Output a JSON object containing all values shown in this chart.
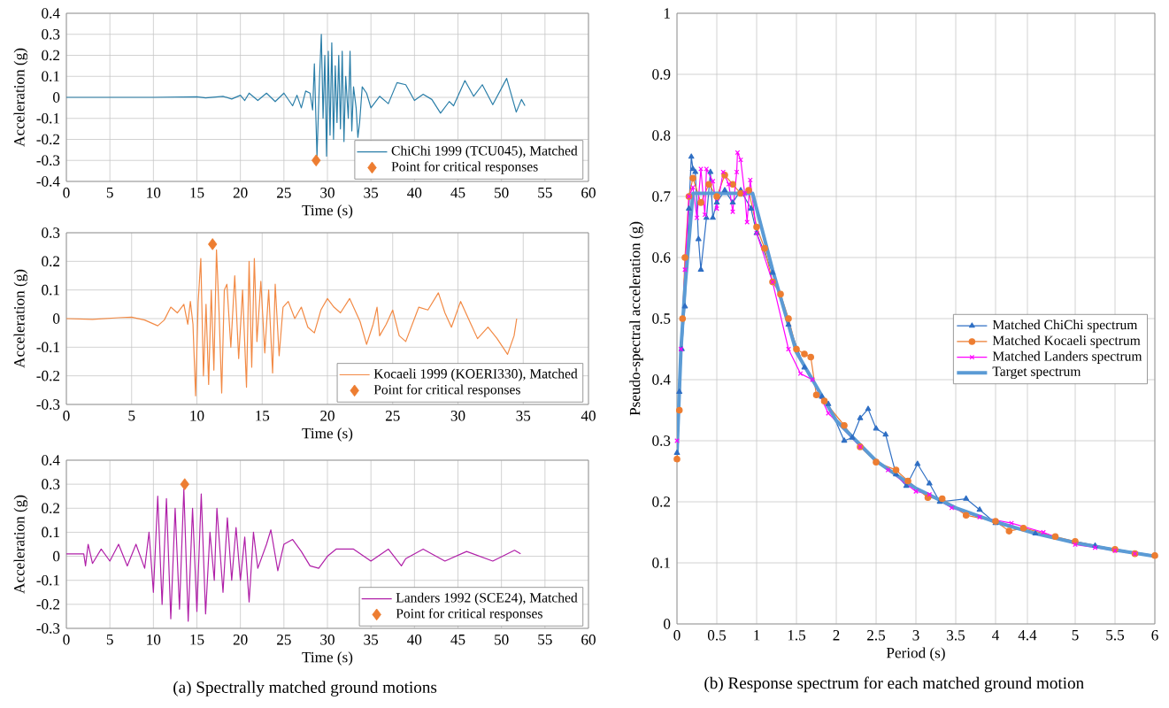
{
  "chart_data": [
    {
      "type": "line",
      "xlabel": "Time (s)",
      "ylabel": "Acceleration (g)",
      "xlim": [
        0,
        60
      ],
      "ylim": [
        -0.4,
        0.4
      ],
      "xticks": [
        0,
        5,
        10,
        15,
        20,
        25,
        30,
        35,
        40,
        45,
        50,
        55,
        60
      ],
      "yticks": [
        -0.4,
        -0.3,
        -0.2,
        -0.1,
        0,
        0.1,
        0.2,
        0.3,
        0.4
      ],
      "grid": true,
      "legend": "bottom right",
      "series": [
        {
          "name": "ChiChi 1999 (TCU045), Matched",
          "color": "#2a7ea8",
          "x": [
            0,
            5,
            10,
            15,
            16,
            18,
            19,
            20,
            20.5,
            21,
            22,
            23,
            24,
            25,
            26,
            26.5,
            27,
            27.5,
            28,
            28.3,
            28.5,
            28.8,
            29.1,
            29.3,
            29.5,
            29.7,
            29.9,
            30.1,
            30.3,
            30.5,
            30.7,
            30.9,
            31.1,
            31.3,
            31.5,
            31.7,
            31.9,
            32.1,
            32.4,
            32.6,
            32.8,
            33.0,
            33.3,
            33.5,
            33.7,
            34,
            34.5,
            35,
            36,
            37,
            38,
            39,
            40,
            41,
            42,
            43,
            44,
            44.5,
            45.8,
            46.8,
            47.8,
            49,
            50.6,
            51.7,
            52.3,
            52.7
          ],
          "values": [
            0,
            0,
            0,
            0.003,
            -0.003,
            0.005,
            -0.008,
            0.01,
            -0.015,
            0.02,
            -0.015,
            0.02,
            -0.02,
            0.02,
            -0.04,
            0.01,
            -0.05,
            0.03,
            0.02,
            -0.06,
            0.16,
            -0.28,
            0.1,
            0.3,
            -0.1,
            0.2,
            -0.28,
            0.22,
            -0.18,
            0.26,
            -0.2,
            0.15,
            -0.12,
            0.2,
            -0.15,
            0.22,
            -0.21,
            0.1,
            -0.1,
            0.22,
            -0.16,
            0.05,
            -0.05,
            -0.19,
            -0.12,
            0.05,
            0.02,
            -0.05,
            0.005,
            -0.03,
            0.07,
            0.06,
            -0.015,
            0.015,
            -0.01,
            -0.075,
            -0.02,
            -0.04,
            0.08,
            0.005,
            0.06,
            -0.035,
            0.09,
            -0.07,
            -0.01,
            -0.04
          ]
        },
        {
          "name": "Point for critical responses",
          "type": "scatter",
          "marker": "diamond",
          "color": "#ed7d31",
          "x": [
            28.7
          ],
          "values": [
            -0.3
          ]
        }
      ]
    },
    {
      "type": "line",
      "xlabel": "Time (s)",
      "ylabel": "Acceleration (g)",
      "xlim": [
        0,
        40
      ],
      "ylim": [
        -0.3,
        0.3
      ],
      "xticks": [
        0,
        5,
        10,
        15,
        20,
        25,
        30,
        35,
        40
      ],
      "yticks": [
        -0.3,
        -0.2,
        -0.1,
        0,
        0.1,
        0.2,
        0.3
      ],
      "grid": true,
      "legend": "bottom right",
      "series": [
        {
          "name": "Kocaeli 1999 (KOERI330), Matched",
          "color": "#f28a45",
          "x": [
            0,
            2,
            4,
            5,
            6,
            7,
            7.5,
            8,
            8.5,
            9,
            9.3,
            9.5,
            9.7,
            9.9,
            10.1,
            10.3,
            10.5,
            10.7,
            10.9,
            11.1,
            11.3,
            11.5,
            11.7,
            11.9,
            12.1,
            12.3,
            12.6,
            12.9,
            13.2,
            13.5,
            13.8,
            14.0,
            14.2,
            14.4,
            14.6,
            14.9,
            15.2,
            15.5,
            15.8,
            16.0,
            16.3,
            16.6,
            17,
            17.5,
            18,
            18.5,
            19,
            19.5,
            20,
            20.5,
            21,
            21.7,
            22.5,
            23,
            23.5,
            23.8,
            24,
            24.5,
            25,
            25.5,
            26,
            27,
            27.7,
            28.5,
            29,
            29.5,
            30.2,
            31,
            31.5,
            32.3,
            33,
            33.8,
            34.3,
            34.5
          ],
          "values": [
            0,
            -0.003,
            0.003,
            0.005,
            -0.005,
            -0.025,
            -0.005,
            0.04,
            0.02,
            0.05,
            -0.02,
            0.06,
            -0.02,
            -0.27,
            0.06,
            0.21,
            -0.2,
            0.05,
            -0.23,
            0.1,
            -0.18,
            0.24,
            0.02,
            -0.26,
            0.1,
            0.12,
            -0.1,
            0.15,
            -0.14,
            0.1,
            -0.24,
            0.2,
            -0.17,
            0.21,
            -0.08,
            0.13,
            -0.12,
            0.1,
            -0.19,
            0.12,
            -0.13,
            0.04,
            0.06,
            0.0,
            0.04,
            -0.03,
            -0.05,
            0.03,
            0.07,
            0.04,
            0.02,
            0.07,
            -0.01,
            -0.09,
            -0.02,
            0.04,
            -0.06,
            -0.02,
            0.03,
            -0.06,
            -0.08,
            0.04,
            0.03,
            0.09,
            0.02,
            -0.03,
            0.06,
            -0.02,
            -0.07,
            -0.03,
            -0.07,
            -0.125,
            -0.06,
            0.0
          ]
        },
        {
          "name": "Point for critical responses",
          "type": "scatter",
          "marker": "diamond",
          "color": "#ed7d31",
          "x": [
            11.2
          ],
          "values": [
            0.26
          ]
        }
      ]
    },
    {
      "type": "line",
      "xlabel": "Time (s)",
      "ylabel": "Acceleration (g)",
      "xlim": [
        0,
        60
      ],
      "ylim": [
        -0.3,
        0.4
      ],
      "xticks": [
        0,
        5,
        10,
        15,
        20,
        25,
        30,
        35,
        40,
        45,
        50,
        55,
        60
      ],
      "yticks": [
        -0.3,
        -0.2,
        -0.1,
        0,
        0.1,
        0.2,
        0.3,
        0.4
      ],
      "grid": true,
      "legend": "bottom right",
      "annotations": [
        "(a) Spectrally matched ground motions"
      ],
      "series": [
        {
          "name": "Landers 1992 (SCE24), Matched",
          "color": "#b020a8",
          "x": [
            0,
            2,
            2.2,
            2.5,
            3,
            4,
            5,
            6,
            7,
            8,
            9,
            9.5,
            10,
            10.5,
            11,
            11.5,
            12,
            12.5,
            13,
            13.5,
            14,
            14.5,
            15,
            15.5,
            16,
            16.5,
            17,
            17.3,
            18,
            18.5,
            19,
            19.5,
            20,
            20.5,
            21,
            21.5,
            22,
            23,
            23.5,
            24.3,
            25,
            26,
            27,
            28,
            29,
            30,
            31,
            33,
            35,
            37,
            38.5,
            39,
            41,
            43.5,
            46,
            49,
            51.5,
            52.2
          ],
          "values": [
            0.01,
            0.01,
            -0.04,
            0.05,
            -0.03,
            0.03,
            -0.02,
            0.05,
            -0.04,
            0.05,
            -0.05,
            0.1,
            -0.15,
            0.25,
            -0.2,
            0.24,
            -0.26,
            0.2,
            -0.22,
            0.28,
            -0.27,
            0.2,
            -0.23,
            0.26,
            -0.24,
            0.1,
            -0.1,
            0.2,
            -0.15,
            0.16,
            -0.1,
            0.12,
            -0.1,
            0.08,
            -0.19,
            0.1,
            -0.05,
            0.05,
            0.11,
            -0.06,
            0.05,
            0.07,
            0.02,
            -0.04,
            -0.05,
            0.0,
            0.03,
            0.03,
            -0.02,
            0.03,
            -0.04,
            -0.01,
            0.03,
            -0.02,
            0.02,
            -0.02,
            0.025,
            0.01
          ]
        },
        {
          "name": "Point for critical responses",
          "type": "scatter",
          "marker": "diamond",
          "color": "#ed7d31",
          "x": [
            13.6
          ],
          "values": [
            0.3
          ]
        }
      ]
    },
    {
      "type": "line",
      "xlabel": "Period (s)",
      "ylabel": "Pseudo-spectral acceleration (g)",
      "xlim": [
        0,
        6
      ],
      "ylim": [
        0,
        1
      ],
      "xticks": [
        0,
        0.5,
        1,
        1.5,
        2,
        2.5,
        3,
        3.5,
        4,
        4.4,
        5,
        5.5,
        6
      ],
      "yticks": [
        0,
        0.1,
        0.2,
        0.3,
        0.4,
        0.5,
        0.6,
        0.7,
        0.8,
        0.9,
        1
      ],
      "grid": true,
      "legend": "right",
      "annotations": [
        "(b) Response spectrum for each matched ground motion"
      ],
      "series": [
        {
          "name": "Matched ChiChi spectrum",
          "color": "#2f6fc4",
          "marker": "triangle",
          "x": [
            0,
            0.03,
            0.06,
            0.1,
            0.15,
            0.18,
            0.2,
            0.23,
            0.27,
            0.3,
            0.37,
            0.42,
            0.45,
            0.5,
            0.6,
            0.7,
            0.8,
            0.93,
            1.0,
            1.2,
            1.4,
            1.6,
            1.82,
            1.9,
            2.1,
            2.2,
            2.3,
            2.4,
            2.5,
            2.62,
            2.75,
            2.88,
            3.02,
            3.17,
            3.3,
            3.63,
            3.8,
            4.0,
            4.5,
            5.25,
            6
          ],
          "values": [
            0.28,
            0.38,
            0.45,
            0.52,
            0.68,
            0.765,
            0.745,
            0.74,
            0.63,
            0.58,
            0.665,
            0.74,
            0.665,
            0.69,
            0.71,
            0.69,
            0.71,
            0.68,
            0.64,
            0.575,
            0.49,
            0.42,
            0.372,
            0.36,
            0.3,
            0.305,
            0.337,
            0.352,
            0.32,
            0.31,
            0.245,
            0.226,
            0.262,
            0.23,
            0.2,
            0.205,
            0.187,
            0.165,
            0.148,
            0.128,
            0.112
          ]
        },
        {
          "name": "Matched Kocaeli spectrum",
          "color": "#ed7d31",
          "marker": "circle",
          "x": [
            0,
            0.03,
            0.07,
            0.1,
            0.15,
            0.2,
            0.3,
            0.4,
            0.5,
            0.6,
            0.7,
            0.8,
            0.9,
            1.0,
            1.1,
            1.2,
            1.3,
            1.4,
            1.5,
            1.6,
            1.68,
            1.75,
            1.85,
            2.1,
            2.3,
            2.5,
            2.75,
            2.9,
            3.15,
            3.33,
            3.63,
            4.0,
            4.17,
            4.35,
            4.75,
            5.0,
            5.5,
            5.75,
            6
          ],
          "values": [
            0.27,
            0.35,
            0.5,
            0.6,
            0.7,
            0.73,
            0.69,
            0.72,
            0.7,
            0.735,
            0.72,
            0.705,
            0.71,
            0.65,
            0.615,
            0.56,
            0.54,
            0.5,
            0.45,
            0.442,
            0.437,
            0.375,
            0.365,
            0.325,
            0.29,
            0.265,
            0.252,
            0.234,
            0.207,
            0.205,
            0.178,
            0.168,
            0.152,
            0.157,
            0.143,
            0.135,
            0.122,
            0.115,
            0.112
          ]
        },
        {
          "name": "Matched Landers spectrum",
          "color": "#ff00ff",
          "marker": "cross",
          "x": [
            0,
            0.05,
            0.1,
            0.15,
            0.2,
            0.25,
            0.3,
            0.35,
            0.37,
            0.45,
            0.5,
            0.58,
            0.65,
            0.7,
            0.75,
            0.76,
            0.8,
            0.85,
            0.88,
            0.92,
            1.0,
            1.2,
            1.4,
            1.55,
            1.7,
            1.9,
            2.3,
            2.65,
            3.0,
            3.17,
            3.45,
            3.8,
            4.2,
            4.6,
            5.0,
            5.25,
            5.5,
            5.75
          ],
          "values": [
            0.3,
            0.45,
            0.58,
            0.7,
            0.715,
            0.665,
            0.745,
            0.67,
            0.745,
            0.725,
            0.68,
            0.74,
            0.72,
            0.675,
            0.74,
            0.772,
            0.76,
            0.705,
            0.658,
            0.727,
            0.64,
            0.56,
            0.45,
            0.41,
            0.4,
            0.345,
            0.29,
            0.252,
            0.217,
            0.212,
            0.19,
            0.175,
            0.165,
            0.15,
            0.13,
            0.125,
            0.12,
            0.115
          ]
        },
        {
          "name": "Target spectrum",
          "color": "#5b9bd5",
          "marker": "none",
          "x": [
            0,
            0.05,
            0.1,
            0.2,
            0.95,
            1.2,
            1.5,
            2,
            2.5,
            3,
            3.5,
            4,
            4.5,
            5,
            5.5,
            6
          ],
          "values": [
            0.28,
            0.45,
            0.55,
            0.705,
            0.705,
            0.58,
            0.445,
            0.333,
            0.267,
            0.222,
            0.19,
            0.167,
            0.148,
            0.133,
            0.121,
            0.111
          ]
        }
      ]
    }
  ]
}
